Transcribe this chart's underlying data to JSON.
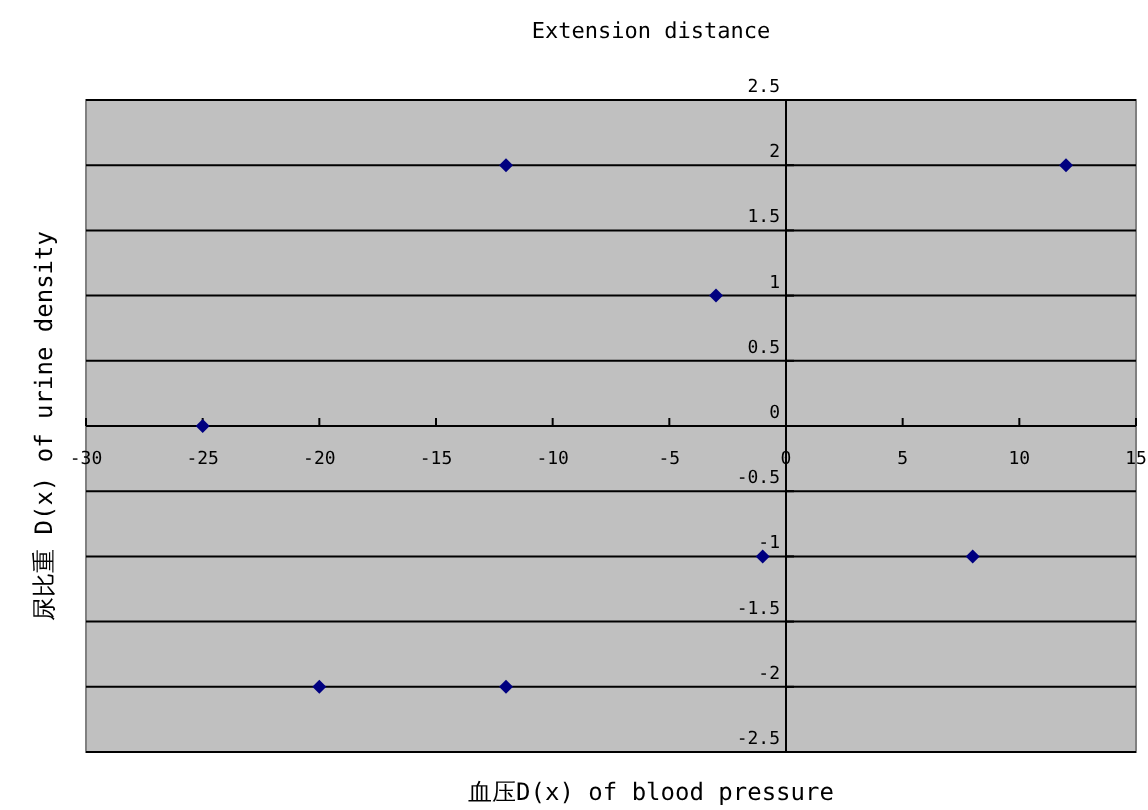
{
  "chart_data": {
    "type": "scatter",
    "title": "Extension distance",
    "xlabel": "血压D(x) of blood pressure",
    "ylabel": "尿比重 D(x) of urine density",
    "x": [
      -12,
      12,
      -3,
      -25,
      -1,
      8,
      -20,
      -12
    ],
    "series": [
      {
        "color": "#000080",
        "values": [
          2,
          2,
          1,
          0,
          -1,
          -1,
          -2,
          -2
        ]
      }
    ],
    "xlim": [
      -30,
      15
    ],
    "xticks": [
      -30,
      -25,
      -20,
      -15,
      -10,
      -5,
      0,
      5,
      10,
      15
    ],
    "ylim": [
      -2.5,
      2.5
    ],
    "yticks": [
      -2.5,
      -2,
      -1.5,
      -1,
      -0.5,
      0,
      0.5,
      1,
      1.5,
      2,
      2.5
    ],
    "grid": "y",
    "marker": "diamond"
  }
}
